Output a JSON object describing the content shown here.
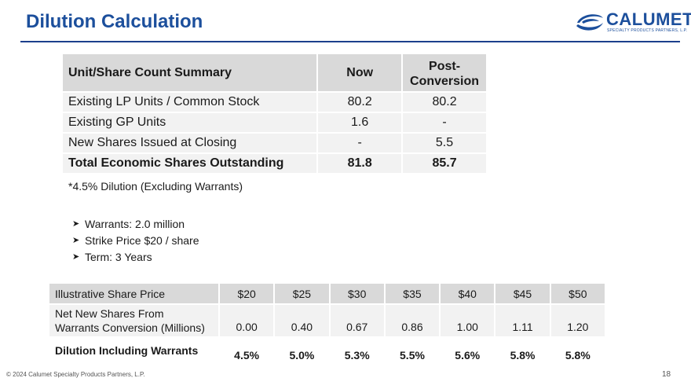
{
  "page": {
    "title": "Dilution Calculation",
    "page_number": "18",
    "footer": "© 2024 Calumet Specialty Products Partners, L.P."
  },
  "logo": {
    "wordmark": "CALUMET",
    "subtitle": "SPECIALTY PRODUCTS PARTNERS, L.P."
  },
  "summary_table": {
    "headers": {
      "label": "Unit/Share Count Summary",
      "now": "Now",
      "post_line1": "Post-",
      "post_line2": "Conversion"
    },
    "rows": [
      {
        "label": "Existing LP Units / Common Stock",
        "now": "80.2",
        "post": "80.2"
      },
      {
        "label": "Existing GP Units",
        "now": "1.6",
        "post": "-"
      },
      {
        "label": "New Shares Issued at Closing",
        "now": "-",
        "post": "5.5"
      }
    ],
    "total": {
      "label": "Total Economic Shares Outstanding",
      "now": "81.8",
      "post": "85.7"
    }
  },
  "dilution_note": "*4.5% Dilution (Excluding Warrants)",
  "bullets": [
    "Warrants: 2.0 million",
    "Strike Price $20 / share",
    "Term: 3 Years"
  ],
  "warrants_table": {
    "header_label": "Illustrative Share Price",
    "prices": [
      "$20",
      "$25",
      "$30",
      "$35",
      "$40",
      "$45",
      "$50"
    ],
    "net_label_line1": "Net New Shares From",
    "net_label_line2": "Warrants Conversion (Millions)",
    "net_values": [
      "0.00",
      "0.40",
      "0.67",
      "0.86",
      "1.00",
      "1.11",
      "1.20"
    ],
    "dilution_label": "Dilution Including Warrants",
    "dilution_values": [
      "4.5%",
      "5.0%",
      "5.3%",
      "5.5%",
      "5.6%",
      "5.8%",
      "5.8%"
    ]
  },
  "colors": {
    "brand_blue": "#1c4f9c",
    "rule_blue": "#1c3f8c",
    "header_gray": "#d9d9d9",
    "row_gray": "#f2f2f2"
  }
}
